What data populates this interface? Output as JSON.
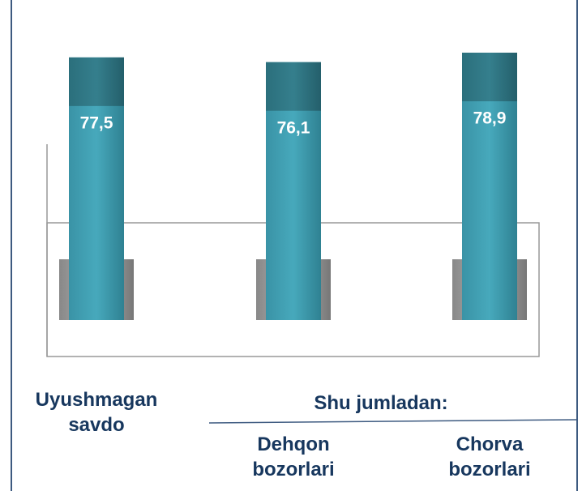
{
  "chart_data": {
    "type": "bar",
    "categories": [
      "Uyushmagan savdo",
      "Dehqon bozorlari",
      "Chorva bozorlari"
    ],
    "values": [
      77.5,
      76.1,
      78.9
    ],
    "value_labels": [
      "77,5",
      "76,1",
      "78,9"
    ],
    "color": "#3f9db0",
    "annotations": [
      "Shu jumladan:"
    ]
  }
}
